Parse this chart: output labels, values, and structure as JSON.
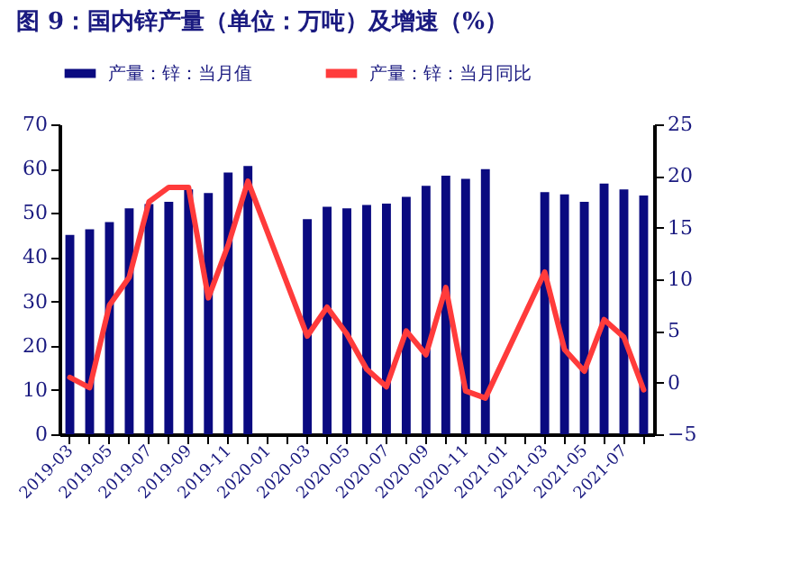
{
  "chart_data": {
    "type": "bar",
    "title": "图 9：国内锌产量（单位：万吨）及增速（%）",
    "categories": [
      "2019-03",
      null,
      "2019-05",
      null,
      "2019-07",
      null,
      "2019-09",
      null,
      "2019-11",
      null,
      "2020-01",
      null,
      "2020-03",
      null,
      "2020-05",
      null,
      "2020-07",
      null,
      "2020-09",
      null,
      "2020-11",
      null,
      "2021-01",
      null,
      "2021-03",
      null,
      "2021-05",
      null,
      "2021-07",
      null
    ],
    "series": [
      {
        "name": "产量：锌：当月值",
        "color": "#0a0a80",
        "values": [
          45,
          46.3,
          47.9,
          51,
          52,
          52.5,
          55.3,
          54.5,
          59.1,
          60.6,
          null,
          null,
          48.6,
          51.4,
          51,
          51.8,
          52.1,
          53.6,
          56.1,
          58.4,
          57.7,
          59.9,
          null,
          null,
          54.7,
          54.2,
          52.5,
          56.6,
          55.3,
          53.9
        ]
      },
      {
        "name": "产量：锌：当月同比",
        "type": "line",
        "axis": "y2",
        "color": "#ff3b3b",
        "values": [
          0.5,
          -0.5,
          7.5,
          10.2,
          17.5,
          18.9,
          18.9,
          8.2,
          13.3,
          19.5,
          null,
          null,
          4.5,
          7.3,
          4.7,
          1.3,
          -0.4,
          5,
          2.7,
          9.2,
          -0.8,
          -1.5,
          null,
          null,
          10.7,
          3.2,
          1.1,
          6.1,
          4.4,
          -0.7
        ]
      }
    ],
    "ylim": [
      0,
      70
    ],
    "yticks": [
      0,
      10,
      20,
      30,
      40,
      50,
      60,
      70
    ],
    "y2lim": [
      -5,
      25
    ],
    "y2ticks": [
      -5,
      0,
      5,
      10,
      15,
      20,
      25
    ],
    "legend": "top",
    "grid": false
  }
}
